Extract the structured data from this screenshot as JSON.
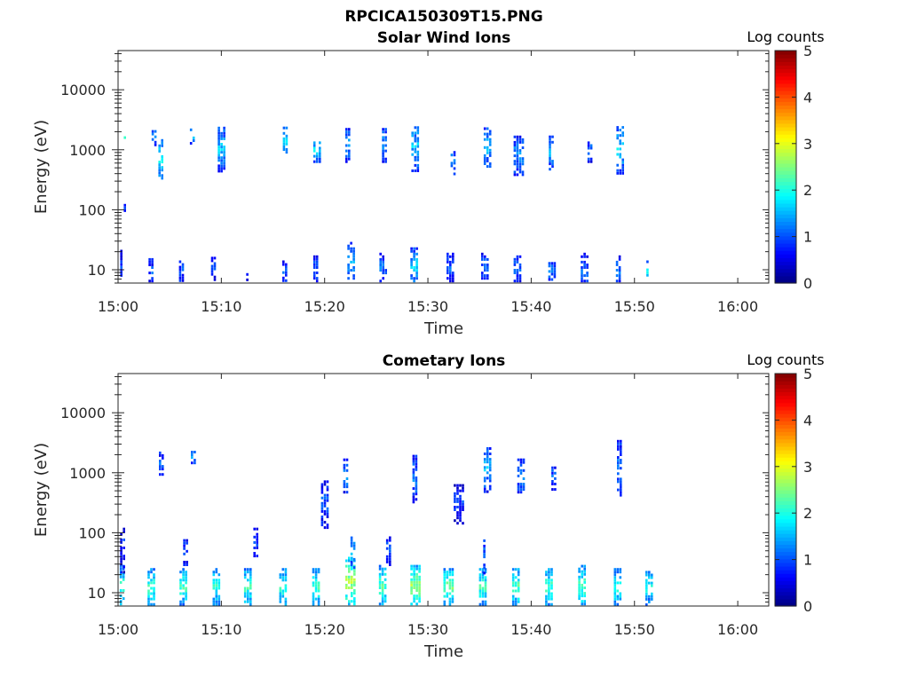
{
  "figure": {
    "title": "RPCICA150309T15.PNG"
  },
  "chart_data": [
    {
      "type": "heatmap",
      "title": "Solar Wind Ions",
      "xlabel": "Time",
      "ylabel": "Energy (eV)",
      "x_ticks": [
        "15:00",
        "15:10",
        "15:20",
        "15:30",
        "15:40",
        "15:50",
        "16:00"
      ],
      "x_range_minutes": [
        0,
        63
      ],
      "y_scale": "log",
      "y_ticks": [
        10,
        100,
        1000,
        10000
      ],
      "y_tick_labels": [
        "10",
        "100",
        "1000",
        "10000"
      ],
      "y_range": [
        6,
        45000
      ],
      "colorbar": {
        "label": "Log counts",
        "ticks": [
          0,
          1,
          2,
          3,
          4,
          5
        ],
        "range": [
          0,
          5
        ],
        "colormap": "jet"
      },
      "clusters": [
        {
          "t": 0.2,
          "e": 10,
          "w": 0.5,
          "h": 2.2,
          "v": 0.8
        },
        {
          "t": 3.2,
          "e": 9,
          "w": 0.5,
          "h": 1.8,
          "v": 0.9
        },
        {
          "t": 6.2,
          "e": 9,
          "w": 0.6,
          "h": 1.6,
          "v": 0.9
        },
        {
          "t": 9.3,
          "e": 11,
          "w": 0.6,
          "h": 1.7,
          "v": 0.8
        },
        {
          "t": 12.5,
          "e": 9,
          "w": 0.2,
          "h": 1.4,
          "v": 0.8
        },
        {
          "t": 16.2,
          "e": 9,
          "w": 0.6,
          "h": 1.6,
          "v": 0.9
        },
        {
          "t": 19.2,
          "e": 10,
          "w": 0.6,
          "h": 1.8,
          "v": 0.9
        },
        {
          "t": 22.6,
          "e": 12,
          "w": 0.8,
          "h": 2.4,
          "v": 1.2
        },
        {
          "t": 25.7,
          "e": 10,
          "w": 0.8,
          "h": 2.0,
          "v": 1.0
        },
        {
          "t": 28.7,
          "e": 11,
          "w": 0.8,
          "h": 2.2,
          "v": 1.4
        },
        {
          "t": 32.2,
          "e": 10,
          "w": 0.8,
          "h": 2.0,
          "v": 1.0
        },
        {
          "t": 35.5,
          "e": 10,
          "w": 0.7,
          "h": 2.0,
          "v": 1.0
        },
        {
          "t": 38.7,
          "e": 10,
          "w": 0.8,
          "h": 1.8,
          "v": 0.9
        },
        {
          "t": 42.0,
          "e": 9,
          "w": 0.7,
          "h": 1.7,
          "v": 1.0
        },
        {
          "t": 45.2,
          "e": 10,
          "w": 0.8,
          "h": 2.0,
          "v": 1.0
        },
        {
          "t": 48.5,
          "e": 10,
          "w": 0.6,
          "h": 1.8,
          "v": 1.1
        },
        {
          "t": 51.3,
          "e": 9,
          "w": 0.3,
          "h": 1.6,
          "v": 1.6
        },
        {
          "t": 0.7,
          "e": 1600,
          "w": 0.3,
          "h": 1.3,
          "v": 1.8
        },
        {
          "t": 3.5,
          "e": 1600,
          "w": 0.5,
          "h": 1.4,
          "v": 1.2
        },
        {
          "t": 4.1,
          "e": 700,
          "w": 0.4,
          "h": 2.2,
          "v": 1.7
        },
        {
          "t": 7.2,
          "e": 1700,
          "w": 0.5,
          "h": 1.4,
          "v": 1.6
        },
        {
          "t": 10.0,
          "e": 1000,
          "w": 0.7,
          "h": 2.4,
          "v": 1.4
        },
        {
          "t": 16.2,
          "e": 1400,
          "w": 0.5,
          "h": 1.8,
          "v": 1.5
        },
        {
          "t": 19.3,
          "e": 900,
          "w": 0.8,
          "h": 1.5,
          "v": 1.6
        },
        {
          "t": 22.2,
          "e": 1200,
          "w": 0.4,
          "h": 2.0,
          "v": 1.2
        },
        {
          "t": 25.8,
          "e": 1200,
          "w": 0.5,
          "h": 2.0,
          "v": 1.2
        },
        {
          "t": 28.8,
          "e": 1100,
          "w": 0.8,
          "h": 2.6,
          "v": 1.4
        },
        {
          "t": 32.5,
          "e": 600,
          "w": 0.6,
          "h": 1.6,
          "v": 1.3
        },
        {
          "t": 35.8,
          "e": 1100,
          "w": 0.8,
          "h": 2.2,
          "v": 1.4
        },
        {
          "t": 38.8,
          "e": 800,
          "w": 1.0,
          "h": 2.2,
          "v": 1.2
        },
        {
          "t": 42.0,
          "e": 900,
          "w": 0.6,
          "h": 2.0,
          "v": 1.3
        },
        {
          "t": 45.7,
          "e": 900,
          "w": 0.5,
          "h": 1.5,
          "v": 1.1
        },
        {
          "t": 48.6,
          "e": 1000,
          "w": 0.7,
          "h": 2.6,
          "v": 1.5
        },
        {
          "t": 0.7,
          "e": 110,
          "w": 0.3,
          "h": 1.2,
          "v": 0.8
        }
      ]
    },
    {
      "type": "heatmap",
      "title": "Cometary Ions",
      "xlabel": "Time",
      "ylabel": "Energy (eV)",
      "x_ticks": [
        "15:00",
        "15:10",
        "15:20",
        "15:30",
        "15:40",
        "15:50",
        "16:00"
      ],
      "x_range_minutes": [
        0,
        63
      ],
      "y_scale": "log",
      "y_ticks": [
        10,
        100,
        1000,
        10000
      ],
      "y_tick_labels": [
        "10",
        "100",
        "1000",
        "10000"
      ],
      "y_range": [
        6,
        45000
      ],
      "colorbar": {
        "label": "Log counts",
        "ticks": [
          0,
          1,
          2,
          3,
          4,
          5
        ],
        "range": [
          0,
          5
        ],
        "colormap": "jet"
      },
      "clusters": [
        {
          "t": 0.3,
          "e": 12,
          "w": 0.8,
          "h": 2.4,
          "v": 1.9
        },
        {
          "t": 3.3,
          "e": 12,
          "w": 0.9,
          "h": 2.2,
          "v": 1.9
        },
        {
          "t": 6.4,
          "e": 12,
          "w": 0.9,
          "h": 2.2,
          "v": 1.9
        },
        {
          "t": 9.6,
          "e": 12,
          "w": 0.9,
          "h": 2.2,
          "v": 1.8
        },
        {
          "t": 12.6,
          "e": 12,
          "w": 0.8,
          "h": 2.2,
          "v": 1.9
        },
        {
          "t": 16.0,
          "e": 12,
          "w": 0.8,
          "h": 2.2,
          "v": 1.9
        },
        {
          "t": 19.2,
          "e": 12,
          "w": 0.8,
          "h": 2.2,
          "v": 1.9
        },
        {
          "t": 22.5,
          "e": 14,
          "w": 1.0,
          "h": 2.8,
          "v": 2.4
        },
        {
          "t": 25.7,
          "e": 12,
          "w": 0.9,
          "h": 2.4,
          "v": 2.0
        },
        {
          "t": 28.8,
          "e": 12,
          "w": 1.0,
          "h": 2.4,
          "v": 2.3
        },
        {
          "t": 32.0,
          "e": 12,
          "w": 1.0,
          "h": 2.2,
          "v": 2.1
        },
        {
          "t": 35.4,
          "e": 12,
          "w": 0.9,
          "h": 2.2,
          "v": 1.9
        },
        {
          "t": 38.6,
          "e": 12,
          "w": 0.9,
          "h": 2.2,
          "v": 2.0
        },
        {
          "t": 41.8,
          "e": 12,
          "w": 0.9,
          "h": 2.2,
          "v": 1.9
        },
        {
          "t": 45.0,
          "e": 12,
          "w": 0.9,
          "h": 2.4,
          "v": 2.0
        },
        {
          "t": 48.4,
          "e": 12,
          "w": 0.8,
          "h": 2.2,
          "v": 1.8
        },
        {
          "t": 51.4,
          "e": 12,
          "w": 0.7,
          "h": 2.0,
          "v": 1.7
        },
        {
          "t": 0.5,
          "e": 50,
          "w": 0.6,
          "h": 2.4,
          "v": 0.8
        },
        {
          "t": 6.5,
          "e": 45,
          "w": 0.4,
          "h": 1.8,
          "v": 0.9
        },
        {
          "t": 13.3,
          "e": 70,
          "w": 0.4,
          "h": 1.8,
          "v": 0.8
        },
        {
          "t": 22.7,
          "e": 50,
          "w": 0.4,
          "h": 2.0,
          "v": 1.4
        },
        {
          "t": 26.2,
          "e": 50,
          "w": 0.5,
          "h": 1.8,
          "v": 0.9
        },
        {
          "t": 35.5,
          "e": 40,
          "w": 0.3,
          "h": 2.2,
          "v": 1.0
        },
        {
          "t": 4.2,
          "e": 1300,
          "w": 0.5,
          "h": 1.8,
          "v": 1.0
        },
        {
          "t": 7.3,
          "e": 1800,
          "w": 0.5,
          "h": 1.3,
          "v": 1.2
        },
        {
          "t": 22.0,
          "e": 900,
          "w": 0.4,
          "h": 2.0,
          "v": 1.2
        },
        {
          "t": 28.8,
          "e": 800,
          "w": 0.6,
          "h": 2.6,
          "v": 1.1
        },
        {
          "t": 35.8,
          "e": 1100,
          "w": 0.8,
          "h": 2.4,
          "v": 1.3
        },
        {
          "t": 39.0,
          "e": 900,
          "w": 0.7,
          "h": 2.0,
          "v": 1.2
        },
        {
          "t": 42.2,
          "e": 800,
          "w": 0.5,
          "h": 1.6,
          "v": 1.0
        },
        {
          "t": 48.6,
          "e": 1200,
          "w": 0.6,
          "h": 3.0,
          "v": 1.1
        },
        {
          "t": 20.0,
          "e": 300,
          "w": 0.7,
          "h": 2.6,
          "v": 0.9
        },
        {
          "t": 33.0,
          "e": 300,
          "w": 1.0,
          "h": 2.2,
          "v": 0.8
        }
      ]
    }
  ]
}
